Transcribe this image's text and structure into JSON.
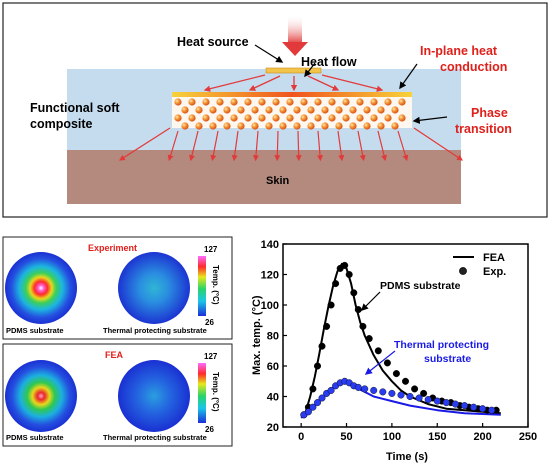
{
  "schematic": {
    "labels": {
      "heat_source": "Heat source",
      "heat_flow": "Heat flow",
      "in_plane_line1": "In-plane heat",
      "in_plane_line2": "conduction",
      "functional_line1": "Functional soft",
      "functional_line2": "composite",
      "phase_line1": "Phase",
      "phase_line2": "transition",
      "skin": "Skin"
    },
    "colors": {
      "composite": "#c5dcef",
      "skin": "#b48a7e",
      "heater": "#f2c44a",
      "arrow_red": "#e23a3a",
      "label_red": "#e0201b"
    }
  },
  "maps": {
    "experiment": {
      "title": "Experiment",
      "left_label": "PDMS substrate",
      "right_label": "Thermal protecting substrate",
      "scale_max": "127",
      "scale_min": "26",
      "scale_label": "Temp. (°C)"
    },
    "fea": {
      "title": "FEA",
      "left_label": "PDMS substrate",
      "right_label": "Thermal protecting substrate",
      "scale_max": "127",
      "scale_min": "26",
      "scale_label": "Temp. (°C)"
    }
  },
  "chart_data": {
    "type": "line",
    "xlabel": "Time (s)",
    "ylabel": "Max. temp. (°C)",
    "xlim": [
      -20,
      250
    ],
    "ylim": [
      20,
      140
    ],
    "xticks": [
      0,
      50,
      100,
      150,
      200,
      250
    ],
    "yticks": [
      20,
      40,
      60,
      80,
      100,
      120,
      140
    ],
    "legend": {
      "position": "top-right",
      "entries": [
        "FEA",
        "Exp."
      ]
    },
    "annotations": [
      "PDMS substrate",
      "Thermal protecting substrate"
    ],
    "series": [
      {
        "name": "FEA",
        "color": "#000000",
        "style": "line",
        "group": "PDMS substrate",
        "x": [
          0,
          5,
          10,
          15,
          20,
          25,
          30,
          35,
          40,
          45,
          50,
          55,
          60,
          65,
          70,
          80,
          90,
          100,
          110,
          120,
          140,
          160,
          180,
          200,
          220
        ],
        "y": [
          27,
          30,
          40,
          53,
          68,
          84,
          99,
          112,
          122,
          127,
          124,
          114,
          100,
          89,
          80,
          67,
          57,
          50,
          44,
          40,
          35,
          32,
          31,
          30,
          29
        ]
      },
      {
        "name": "Exp.",
        "color": "#000000",
        "style": "points",
        "group": "PDMS substrate",
        "x": [
          3,
          8,
          13,
          18,
          23,
          28,
          33,
          38,
          43,
          48,
          53,
          58,
          63,
          68,
          75,
          85,
          95,
          105,
          115,
          125,
          135,
          145,
          155,
          165,
          175,
          185,
          195,
          205,
          215
        ],
        "y": [
          28,
          33,
          45,
          60,
          73,
          86,
          100,
          114,
          124,
          126,
          120,
          108,
          97,
          86,
          78,
          70,
          62,
          55,
          50,
          45,
          42,
          39,
          37,
          36,
          34,
          33,
          32,
          31,
          31
        ]
      },
      {
        "name": "FEA",
        "color": "#1a1ae6",
        "style": "line",
        "group": "Thermal protecting substrate",
        "x": [
          0,
          10,
          20,
          30,
          40,
          45,
          50,
          60,
          70,
          80,
          100,
          120,
          150,
          180,
          220
        ],
        "y": [
          26,
          31,
          37,
          43,
          48,
          50,
          49,
          46,
          43,
          40,
          37,
          34,
          31,
          29,
          28
        ]
      },
      {
        "name": "Exp.",
        "color": "#2a3cf0",
        "style": "points",
        "group": "Thermal protecting substrate",
        "x": [
          3,
          8,
          13,
          18,
          23,
          28,
          33,
          38,
          43,
          48,
          53,
          58,
          63,
          70,
          80,
          90,
          100,
          110,
          120,
          130,
          140,
          150,
          160,
          170,
          180,
          190,
          200,
          210
        ],
        "y": [
          28,
          30,
          33,
          36,
          39,
          42,
          44,
          47,
          49,
          50,
          49,
          47,
          46,
          45,
          44,
          43,
          42,
          41,
          40,
          39,
          38,
          37,
          36,
          35,
          34,
          33,
          32,
          31
        ]
      }
    ]
  }
}
